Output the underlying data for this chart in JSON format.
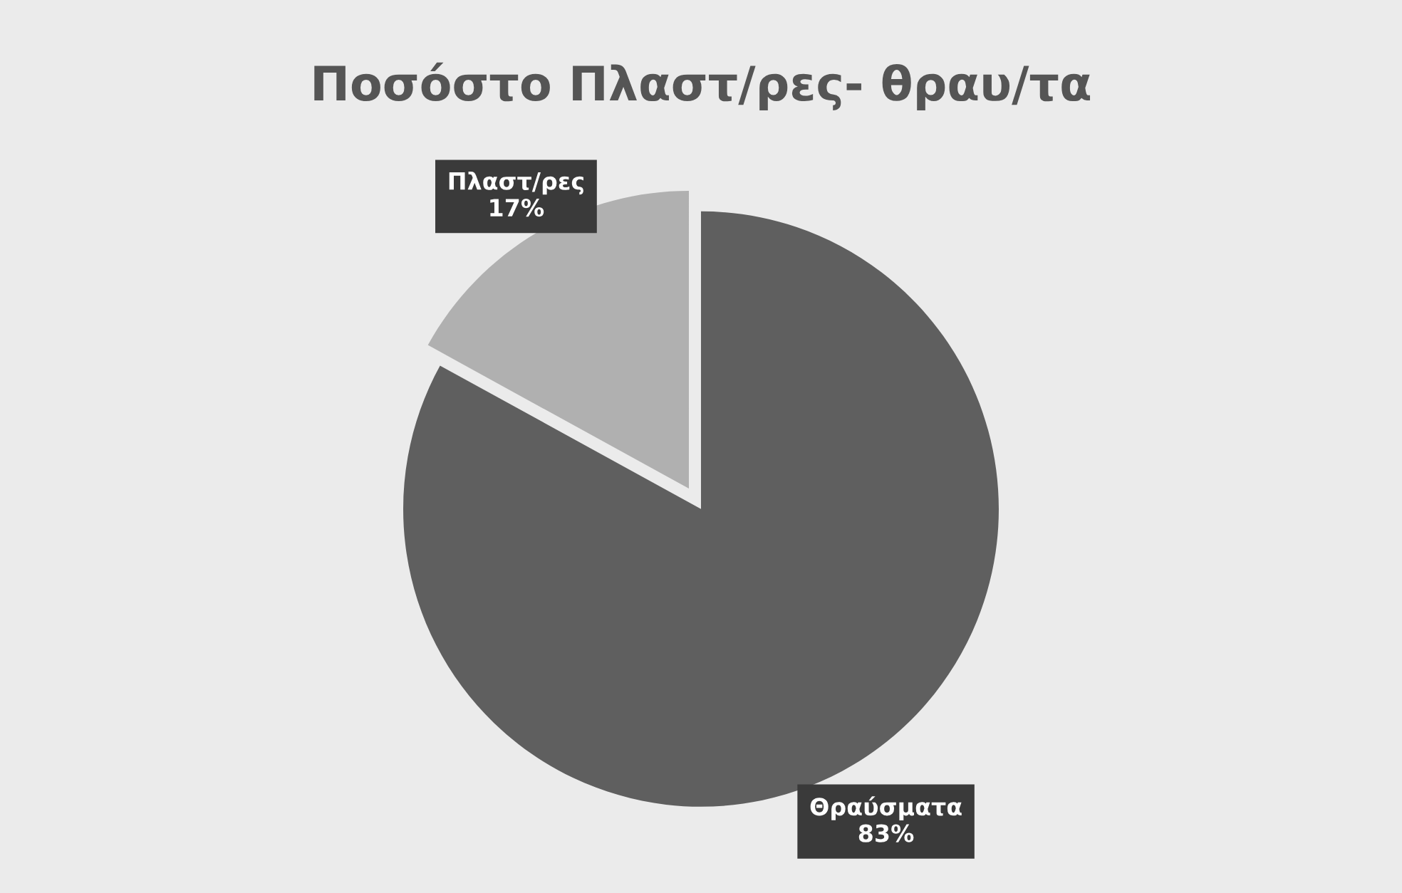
{
  "chart_data": {
    "type": "pie",
    "title": "Ποσόστο Πλαστ/ρες- θραυ/τα",
    "categories": [
      "Θραύσματα",
      "Πλαστ/ρες"
    ],
    "values": [
      83,
      17
    ],
    "colors": [
      "#5f5f5f",
      "#b0b0b0"
    ],
    "value_labels": [
      "83%",
      "17%"
    ]
  }
}
